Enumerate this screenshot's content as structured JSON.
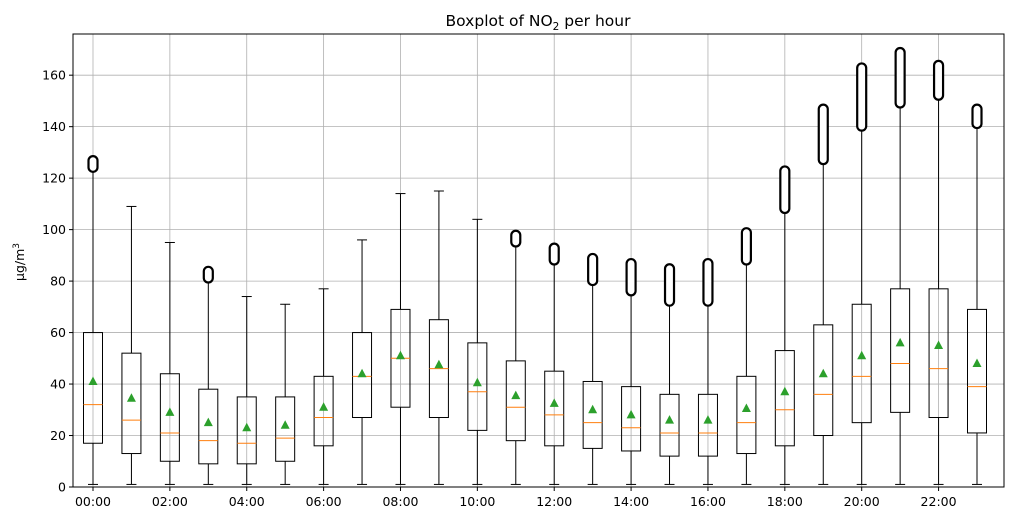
{
  "chart_data": {
    "type": "boxplot",
    "title_main": "Boxplot of NO",
    "title_sub": "2",
    "title_rest": " per hour",
    "ylabel_main": "µg/m",
    "ylabel_sup": "3",
    "xlabel": "",
    "ylim": [
      0,
      176
    ],
    "yticks": [
      0,
      20,
      40,
      60,
      80,
      100,
      120,
      140,
      160
    ],
    "grid": true,
    "colors": {
      "box": "#000000",
      "median": "#ff7f0e",
      "mean": "#2ca02c",
      "grid": "#b0b0b0"
    },
    "categories": [
      "00:00",
      "01:00",
      "02:00",
      "03:00",
      "04:00",
      "05:00",
      "06:00",
      "07:00",
      "08:00",
      "09:00",
      "10:00",
      "11:00",
      "12:00",
      "13:00",
      "14:00",
      "15:00",
      "16:00",
      "17:00",
      "18:00",
      "19:00",
      "20:00",
      "21:00",
      "22:00",
      "23:00"
    ],
    "xtick_labels": [
      "00:00",
      "02:00",
      "04:00",
      "06:00",
      "08:00",
      "10:00",
      "12:00",
      "14:00",
      "16:00",
      "18:00",
      "20:00",
      "22:00"
    ],
    "boxes": [
      {
        "whislo": 1,
        "q1": 17,
        "med": 32,
        "q3": 60,
        "whishi": 124,
        "mean": 41,
        "fliers": [
          124,
          127
        ]
      },
      {
        "whislo": 1,
        "q1": 13,
        "med": 26,
        "q3": 52,
        "whishi": 109,
        "mean": 34.5,
        "fliers": []
      },
      {
        "whislo": 1,
        "q1": 10,
        "med": 21,
        "q3": 44,
        "whishi": 95,
        "mean": 29,
        "fliers": []
      },
      {
        "whislo": 1,
        "q1": 9,
        "med": 18,
        "q3": 38,
        "whishi": 81,
        "mean": 25,
        "fliers": [
          81,
          84
        ]
      },
      {
        "whislo": 1,
        "q1": 9,
        "med": 17,
        "q3": 35,
        "whishi": 74,
        "mean": 23,
        "fliers": []
      },
      {
        "whislo": 1,
        "q1": 10,
        "med": 19,
        "q3": 35,
        "whishi": 71,
        "mean": 24,
        "fliers": []
      },
      {
        "whislo": 1,
        "q1": 16,
        "med": 27,
        "q3": 43,
        "whishi": 77,
        "mean": 31,
        "fliers": []
      },
      {
        "whislo": 1,
        "q1": 27,
        "med": 43,
        "q3": 60,
        "whishi": 96,
        "mean": 44,
        "fliers": []
      },
      {
        "whislo": 1,
        "q1": 31,
        "med": 50,
        "q3": 69,
        "whishi": 114,
        "mean": 51,
        "fliers": []
      },
      {
        "whislo": 1,
        "q1": 27,
        "med": 46,
        "q3": 65,
        "whishi": 115,
        "mean": 47.5,
        "fliers": []
      },
      {
        "whislo": 1,
        "q1": 22,
        "med": 37,
        "q3": 56,
        "whishi": 104,
        "mean": 40.5,
        "fliers": []
      },
      {
        "whislo": 1,
        "q1": 18,
        "med": 31,
        "q3": 49,
        "whishi": 95,
        "mean": 35.5,
        "fliers": [
          95,
          98
        ]
      },
      {
        "whislo": 1,
        "q1": 16,
        "med": 28,
        "q3": 45,
        "whishi": 88,
        "mean": 32.5,
        "fliers": [
          88,
          93
        ]
      },
      {
        "whislo": 1,
        "q1": 15,
        "med": 25,
        "q3": 41,
        "whishi": 80,
        "mean": 30,
        "fliers": [
          80,
          89
        ]
      },
      {
        "whislo": 1,
        "q1": 14,
        "med": 23,
        "q3": 39,
        "whishi": 76,
        "mean": 28,
        "fliers": [
          76,
          87
        ]
      },
      {
        "whislo": 1,
        "q1": 12,
        "med": 21,
        "q3": 36,
        "whishi": 72,
        "mean": 26,
        "fliers": [
          72,
          85
        ]
      },
      {
        "whislo": 1,
        "q1": 12,
        "med": 21,
        "q3": 36,
        "whishi": 72,
        "mean": 26,
        "fliers": [
          72,
          87
        ]
      },
      {
        "whislo": 1,
        "q1": 13,
        "med": 25,
        "q3": 43,
        "whishi": 88,
        "mean": 30.5,
        "fliers": [
          88,
          99
        ]
      },
      {
        "whislo": 1,
        "q1": 16,
        "med": 30,
        "q3": 53,
        "whishi": 108,
        "mean": 37,
        "fliers": [
          108,
          123
        ]
      },
      {
        "whislo": 1,
        "q1": 20,
        "med": 36,
        "q3": 63,
        "whishi": 127,
        "mean": 44,
        "fliers": [
          127,
          147
        ]
      },
      {
        "whislo": 1,
        "q1": 25,
        "med": 43,
        "q3": 71,
        "whishi": 140,
        "mean": 51,
        "fliers": [
          140,
          163
        ]
      },
      {
        "whislo": 1,
        "q1": 29,
        "med": 48,
        "q3": 77,
        "whishi": 149,
        "mean": 56,
        "fliers": [
          149,
          169
        ]
      },
      {
        "whislo": 1,
        "q1": 27,
        "med": 46,
        "q3": 77,
        "whishi": 152,
        "mean": 55,
        "fliers": [
          152,
          164
        ]
      },
      {
        "whislo": 1,
        "q1": 21,
        "med": 39,
        "q3": 69,
        "whishi": 141,
        "mean": 48,
        "fliers": [
          141,
          147
        ]
      }
    ]
  }
}
